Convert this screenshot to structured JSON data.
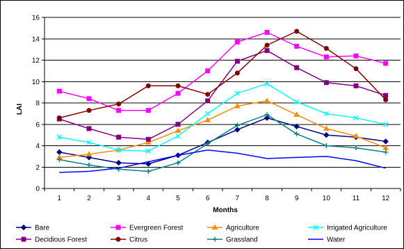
{
  "chart_data": {
    "type": "line",
    "title": "",
    "xlabel": "Months",
    "ylabel": "LAI",
    "x": [
      1,
      2,
      3,
      4,
      5,
      6,
      7,
      8,
      9,
      10,
      11,
      12
    ],
    "ylim": [
      0,
      16
    ],
    "yticks": [
      0,
      2,
      4,
      6,
      8,
      10,
      12,
      14,
      16
    ],
    "grid": "horizontal",
    "legend_position": "bottom",
    "plot_background": "#ffffff",
    "series": [
      {
        "name": "Bare",
        "color": "#000080",
        "marker": "diamond",
        "values": [
          3.4,
          2.9,
          2.4,
          2.3,
          3.1,
          4.3,
          5.5,
          6.6,
          5.8,
          5.0,
          4.8,
          4.4
        ]
      },
      {
        "name": "Evergreen Forest",
        "color": "#ff00ff",
        "marker": "square",
        "values": [
          9.1,
          8.4,
          7.3,
          7.3,
          8.9,
          11.0,
          13.7,
          14.6,
          13.3,
          12.3,
          12.4,
          11.7
        ]
      },
      {
        "name": "Agriculture",
        "color": "#ff8c00",
        "marker": "triangle",
        "values": [
          2.9,
          3.2,
          3.6,
          4.3,
          5.4,
          6.4,
          7.7,
          8.2,
          6.9,
          5.6,
          4.9,
          3.8
        ]
      },
      {
        "name": "Irrigated Agriculture",
        "color": "#00ffff",
        "marker": "x",
        "values": [
          4.8,
          4.3,
          3.6,
          3.5,
          4.9,
          7.0,
          8.9,
          9.8,
          8.1,
          7.0,
          6.6,
          6.0
        ]
      },
      {
        "name": "Decidious Forest",
        "color": "#800080",
        "marker": "square",
        "values": [
          6.5,
          5.6,
          4.8,
          4.6,
          6.0,
          8.2,
          11.9,
          12.9,
          11.3,
          9.9,
          9.6,
          8.7
        ]
      },
      {
        "name": "Citrus",
        "color": "#800000",
        "marker": "circle",
        "values": [
          6.6,
          7.3,
          7.9,
          9.6,
          9.6,
          8.8,
          10.8,
          13.4,
          14.7,
          13.1,
          11.2,
          8.3
        ]
      },
      {
        "name": "Grassland",
        "color": "#008080",
        "marker": "plus",
        "values": [
          2.7,
          2.2,
          1.8,
          1.6,
          2.4,
          4.2,
          5.9,
          6.9,
          5.1,
          4.0,
          3.8,
          3.4
        ]
      },
      {
        "name": "Water",
        "color": "#0000ff",
        "marker": "none",
        "values": [
          1.5,
          1.6,
          1.9,
          2.5,
          3.1,
          3.6,
          3.3,
          2.8,
          2.9,
          3.0,
          2.6,
          1.9
        ]
      }
    ]
  }
}
